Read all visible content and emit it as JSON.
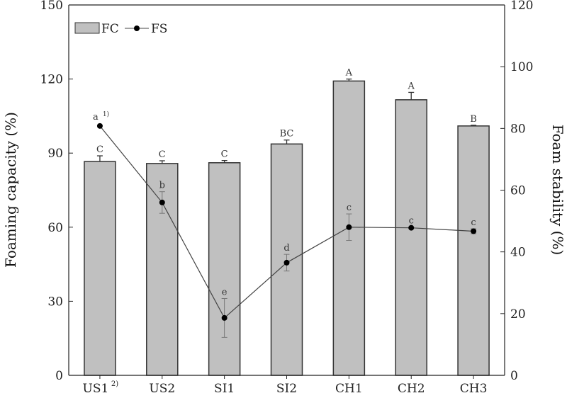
{
  "chart_data": {
    "type": "bar+line",
    "categories": [
      "US1",
      "US2",
      "SI1",
      "SI2",
      "CH1",
      "CH2",
      "CH3"
    ],
    "category_superscripts": {
      "US1": "2)"
    },
    "ylabel_left": "Foaming capacity (%)",
    "ylabel_right": "Foam stability (%)",
    "ylim_left": [
      0,
      150
    ],
    "yticks_left": [
      0,
      30,
      60,
      90,
      120,
      150
    ],
    "ylim_right": [
      0,
      120
    ],
    "yticks_right": [
      0,
      20,
      40,
      60,
      80,
      100,
      120
    ],
    "grid": false,
    "legend": {
      "placement": "top-left",
      "entries": [
        "FC",
        "FS"
      ]
    },
    "colors": {
      "bar": "#c0c0c0",
      "bar_edge": "#333333",
      "line": "#444444",
      "marker": "#000000"
    },
    "series": [
      {
        "name": "FC",
        "type": "bar",
        "axis": "left",
        "values": [
          86.6,
          85.8,
          86.1,
          93.7,
          119.2,
          111.6,
          101.0
        ],
        "errors": [
          2.3,
          1.1,
          0.9,
          1.6,
          0.8,
          3.0,
          0.3
        ],
        "labels": [
          "C",
          "C",
          "C",
          "BC",
          "A",
          "A",
          "B"
        ]
      },
      {
        "name": "FS",
        "type": "line",
        "axis": "right",
        "values": [
          80.8,
          56.0,
          18.6,
          36.5,
          48.0,
          47.8,
          46.7
        ],
        "errors": [
          0,
          3.5,
          6.3,
          2.7,
          4.3,
          0.3,
          0.8
        ],
        "labels": [
          "a",
          "b",
          "e",
          "d",
          "c",
          "c",
          "c"
        ],
        "label_superscripts": {
          "0": "1)"
        }
      }
    ]
  }
}
